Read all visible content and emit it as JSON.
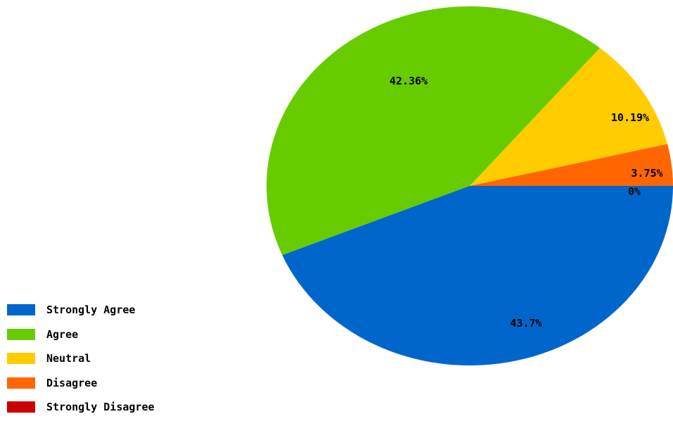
{
  "chart_data": {
    "type": "pie",
    "title": "",
    "categories": [
      "Strongly Agree",
      "Agree",
      "Neutral",
      "Disagree",
      "Strongly Disagree"
    ],
    "values": [
      43.7,
      42.36,
      10.19,
      3.75,
      0
    ],
    "labels": [
      "43.7%",
      "42.36%",
      "10.19%",
      "3.75%",
      "0%"
    ],
    "colors": [
      "#0066cc",
      "#66cc00",
      "#ffcc00",
      "#ff6600",
      "#cc0000"
    ],
    "legend": "bottom-left"
  }
}
